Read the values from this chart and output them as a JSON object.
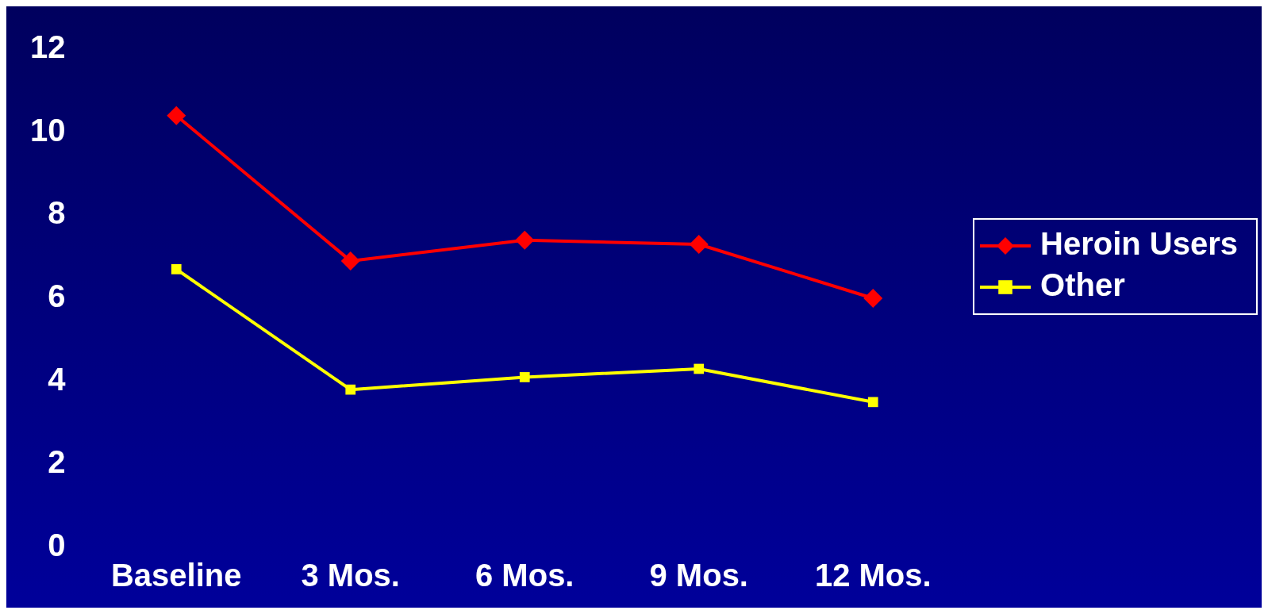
{
  "chart_data": {
    "type": "line",
    "categories": [
      "Baseline",
      "3 Mos.",
      "6 Mos.",
      "9 Mos.",
      "12 Mos."
    ],
    "series": [
      {
        "name": "Heroin Users",
        "color": "#ff0000",
        "marker": "diamond",
        "values": [
          10.4,
          6.9,
          7.4,
          7.3,
          6.0
        ]
      },
      {
        "name": "Other",
        "color": "#ffff00",
        "marker": "square",
        "values": [
          6.7,
          3.8,
          4.1,
          4.3,
          3.5
        ]
      }
    ],
    "ylim": [
      0,
      12
    ],
    "yticks": [
      0,
      2,
      4,
      6,
      8,
      10,
      12
    ],
    "grid": false,
    "legend": "right",
    "line_style": "solid"
  }
}
